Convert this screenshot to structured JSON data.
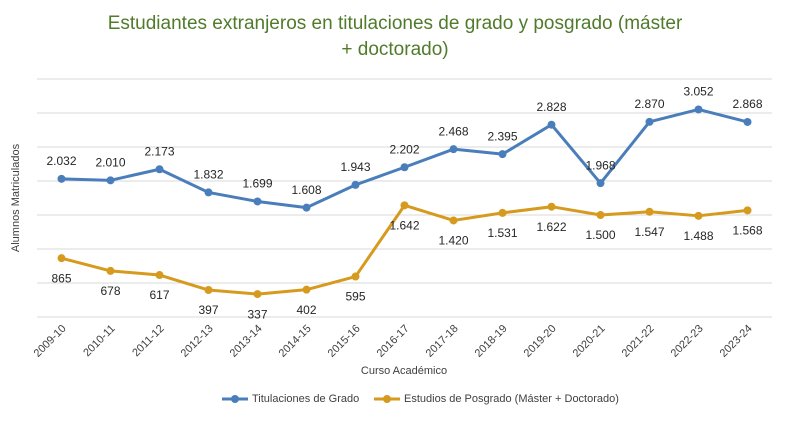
{
  "chart_data": {
    "type": "line",
    "title": "Estudiantes extranjeros en titulaciones de grado y posgrado (máster + doctorado)",
    "x_label": "Curso Académico",
    "y_label": "Alumnos Matriculados",
    "categories": [
      "2009-10",
      "2010-11",
      "2011-12",
      "2012-13",
      "2013-14",
      "2014-15",
      "2015-16",
      "2016-17",
      "2017-18",
      "2018-19",
      "2019-20",
      "2020-21",
      "2021-22",
      "2022-23",
      "2023-24"
    ],
    "series": [
      {
        "name": "Titulaciones de Grado",
        "color": "#4a7ebb",
        "values": [
          2032,
          2010,
          2173,
          1832,
          1699,
          1608,
          1943,
          2202,
          2468,
          2395,
          2828,
          1968,
          2870,
          3052,
          2868
        ],
        "value_labels": [
          "2.032",
          "2.010",
          "2.173",
          "1.832",
          "1.699",
          "1.608",
          "1.943",
          "2.202",
          "2.468",
          "2.395",
          "2.828",
          "1.968",
          "2.870",
          "3.052",
          "2.868"
        ]
      },
      {
        "name": "Estudios de Posgrado (Máster + Doctorado)",
        "color": "#d69a1e",
        "values": [
          865,
          678,
          617,
          397,
          337,
          402,
          595,
          1642,
          1420,
          1531,
          1622,
          1500,
          1547,
          1488,
          1568
        ],
        "value_labels": [
          "865",
          "678",
          "617",
          "397",
          "337",
          "402",
          "595",
          "1.642",
          "1.420",
          "1.531",
          "1.622",
          "1.500",
          "1.547",
          "1.488",
          "1.568"
        ]
      }
    ],
    "ylim": [
      0,
      3500
    ],
    "yticks": [
      0,
      500,
      1000,
      1500,
      2000,
      2500,
      3000,
      3500
    ],
    "grid": true
  }
}
